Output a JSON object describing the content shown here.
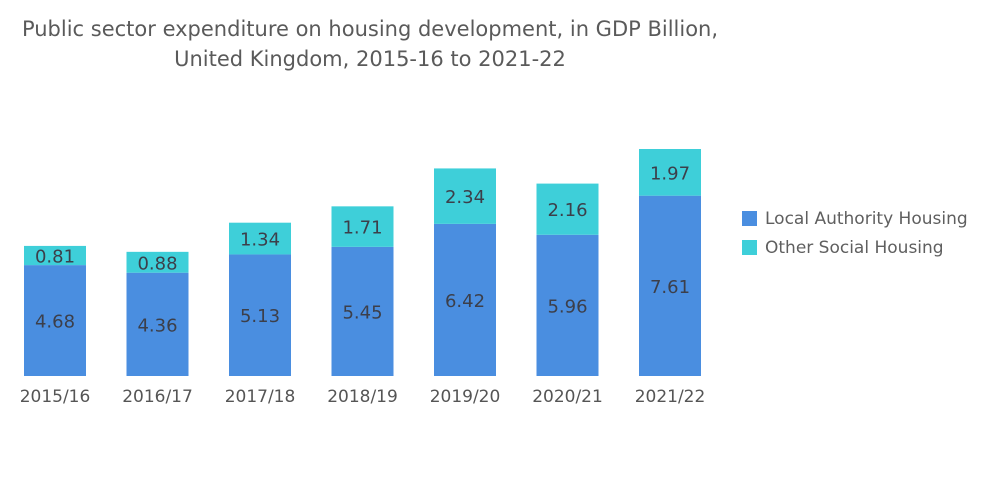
{
  "chart_data": {
    "type": "bar",
    "stacked": true,
    "title": "Public sector expenditure on housing development, in GDP Billion, United Kingdom, 2015-16 to 2021-22",
    "title_lines": [
      "Public sector expenditure on housing development, in GDP Billion,",
      "United Kingdom, 2015-16 to 2021-22"
    ],
    "xlabel": "",
    "ylabel": "",
    "categories": [
      "2015/16",
      "2016/17",
      "2017/18",
      "2018/19",
      "2019/20",
      "2020/21",
      "2021/22"
    ],
    "series": [
      {
        "name": "Local Authority Housing",
        "color": "#4a8ee0",
        "values": [
          4.68,
          4.36,
          5.13,
          5.45,
          6.42,
          5.96,
          7.61
        ]
      },
      {
        "name": "Other Social Housing",
        "color": "#3ecfd9",
        "values": [
          0.81,
          0.88,
          1.34,
          1.71,
          2.34,
          2.16,
          1.97
        ]
      }
    ],
    "ylim": [
      0,
      9.58
    ],
    "y_axis_visible": false,
    "grid": false,
    "data_labels": true,
    "legend_position": "right"
  }
}
